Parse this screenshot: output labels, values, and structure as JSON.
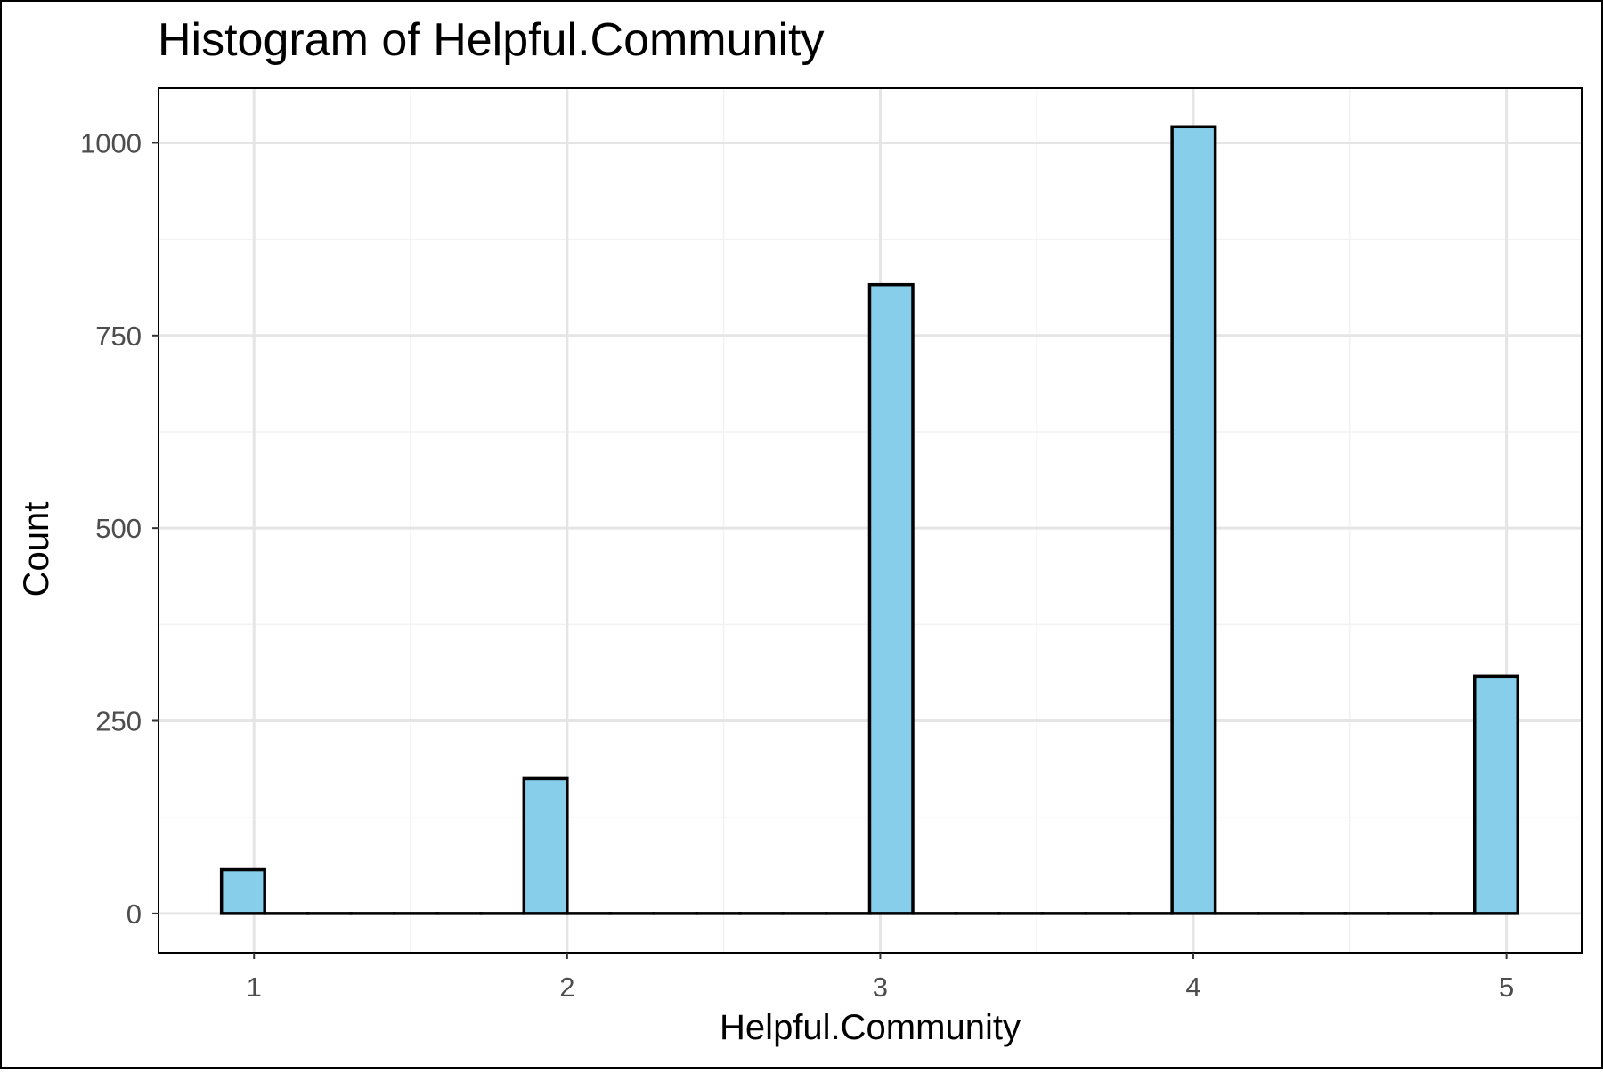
{
  "chart_data": {
    "type": "bar",
    "title": "Histogram of Helpful.Community",
    "xlabel": "Helpful.Community",
    "ylabel": "Count",
    "x_ticks": [
      1,
      2,
      3,
      4,
      5
    ],
    "y_ticks": [
      0,
      250,
      500,
      750,
      1000
    ],
    "xlim": [
      0.695,
      5.24
    ],
    "ylim": [
      -51,
      1071
    ],
    "grid": true,
    "bin_width": 0.138,
    "bins": [
      {
        "x": 0.965,
        "count": 57
      },
      {
        "x": 1.103,
        "count": 0
      },
      {
        "x": 1.241,
        "count": 0
      },
      {
        "x": 1.379,
        "count": 0
      },
      {
        "x": 1.517,
        "count": 0
      },
      {
        "x": 1.655,
        "count": 0
      },
      {
        "x": 1.793,
        "count": 0
      },
      {
        "x": 1.931,
        "count": 175
      },
      {
        "x": 2.069,
        "count": 0
      },
      {
        "x": 2.207,
        "count": 0
      },
      {
        "x": 2.345,
        "count": 0
      },
      {
        "x": 2.483,
        "count": 0
      },
      {
        "x": 2.621,
        "count": 0
      },
      {
        "x": 2.759,
        "count": 0
      },
      {
        "x": 2.897,
        "count": 0
      },
      {
        "x": 3.035,
        "count": 816
      },
      {
        "x": 3.173,
        "count": 0
      },
      {
        "x": 3.311,
        "count": 0
      },
      {
        "x": 3.449,
        "count": 0
      },
      {
        "x": 3.587,
        "count": 0
      },
      {
        "x": 3.725,
        "count": 0
      },
      {
        "x": 3.863,
        "count": 0
      },
      {
        "x": 4.001,
        "count": 1021
      },
      {
        "x": 4.139,
        "count": 0
      },
      {
        "x": 4.277,
        "count": 0
      },
      {
        "x": 4.415,
        "count": 0
      },
      {
        "x": 4.553,
        "count": 0
      },
      {
        "x": 4.691,
        "count": 0
      },
      {
        "x": 4.829,
        "count": 0
      },
      {
        "x": 4.967,
        "count": 308
      }
    ],
    "colors": {
      "bar_fill": "#87CEEB",
      "bar_stroke": "#000000",
      "panel_border": "#000000",
      "grid_major": "#E5E5E5",
      "grid_minor": "#F2F2F2",
      "tick_text": "#4D4D4D",
      "label_text": "#000000"
    }
  }
}
